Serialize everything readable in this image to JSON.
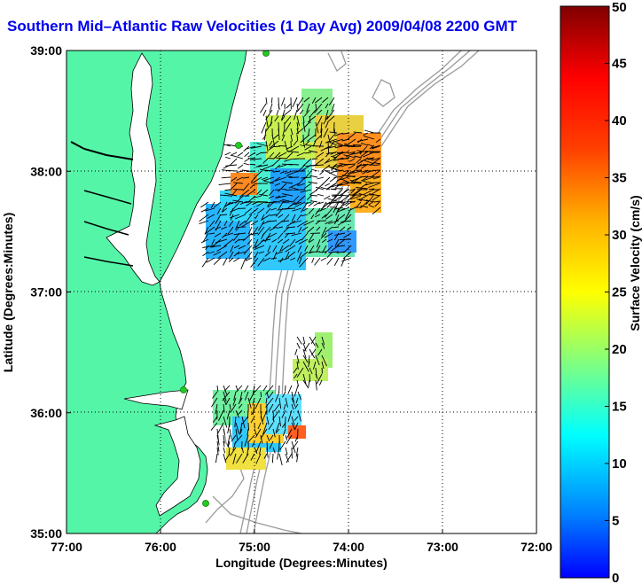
{
  "title": "Southern Mid–Atlantic Raw Velocities (1 Day Avg) 2009/04/08 2200 GMT",
  "chart_data": {
    "type": "heatmap",
    "title": "Southern Mid–Atlantic Raw Velocities (1 Day Avg) 2009/04/08 2200 GMT",
    "xlabel": "Longitude (Degrees:Minutes)",
    "ylabel": "Latitude (Degrees:Minutes)",
    "x_ticks": [
      "77:00",
      "76:00",
      "75:00",
      "74:00",
      "73:00",
      "72:00"
    ],
    "y_ticks": [
      "39:00",
      "38:00",
      "37:00",
      "36:00",
      "35:00"
    ],
    "xlim": [
      -77,
      -72
    ],
    "ylim": [
      35,
      39
    ],
    "grid": "dotted",
    "colorbar": {
      "label": "Surface Velocity (cm/s)",
      "min": 0,
      "max": 50,
      "ticks": [
        "0",
        "5",
        "10",
        "15",
        "20",
        "25",
        "30",
        "35",
        "40",
        "45",
        "50"
      ]
    },
    "colors": {
      "land": "#55f5a8",
      "ocean": "#ffffff",
      "bathymetry": "#9a9a9a",
      "stations": "#22cc22",
      "title": "#0000ee"
    }
  }
}
